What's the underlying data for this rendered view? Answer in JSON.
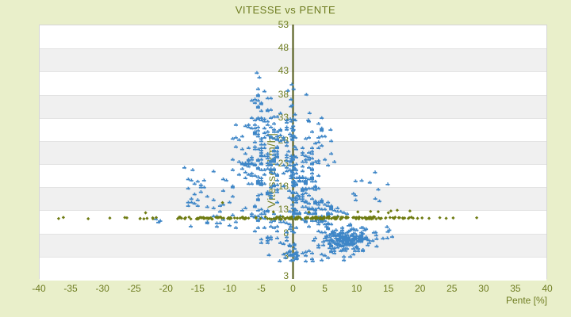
{
  "chart_data": {
    "type": "scatter",
    "title": "VITESSE vs PENTE",
    "xlabel": "Pente [%]",
    "ylabel": "Vitesse [km/h]",
    "xlim": [
      -40,
      40
    ],
    "ylim": [
      3,
      53
    ],
    "x_tick_step": 5,
    "y_tick_step": 5,
    "x_tick_labels": [
      "-40",
      "-35",
      "-30",
      "-25",
      "-20",
      "-15",
      "-10",
      "-5",
      "0",
      "5",
      "10",
      "15",
      "20",
      "25",
      "30",
      "35",
      "40"
    ],
    "y_tick_labels": [
      "53",
      "48",
      "43",
      "38",
      "33",
      "28",
      "23",
      "18",
      "13",
      "8",
      "3",
      "3"
    ],
    "grid": "horizontal-bands",
    "legend": "none",
    "colors": {
      "background": "#e9efca",
      "band_light": "#ffffff",
      "band_dark": "#f0f0f0",
      "band_line": "#e3e3e3",
      "plot_border": "#d5d5d5",
      "axis_line": "#4c5410",
      "text": "#6f7d22",
      "blue_points": "#3e86c7",
      "olive_points": "#6e7b11"
    },
    "series": [
      {
        "name": "vitesse",
        "marker": "plus",
        "color": "#3e86c7",
        "seed": 1337,
        "clusters": [
          {
            "type": "gauss",
            "cx": -4.6,
            "cy": 35.2,
            "sx": 1.15,
            "sy": 2.3,
            "n": 28,
            "qx": 0.5,
            "qy": 0.25
          },
          {
            "type": "gauss",
            "cx": -4.2,
            "cy": 29.8,
            "sx": 2.0,
            "sy": 1.8,
            "n": 58,
            "qx": 0.5,
            "qy": 0.25
          },
          {
            "type": "gauss",
            "cx": -4.4,
            "cy": 22.2,
            "sx": 2.7,
            "sy": 2.9,
            "n": 145,
            "qx": 0.5,
            "qy": 0.25
          },
          {
            "type": "uniform",
            "x0": -16.5,
            "x1": -9,
            "y0": 13.4,
            "y1": 19.6,
            "n": 30,
            "qx": 0.5,
            "qy": 0.25
          },
          {
            "type": "uniform",
            "x0": -14,
            "x1": -8.5,
            "y0": 8.6,
            "y1": 13.4,
            "n": 13,
            "qx": 0.5,
            "qy": 0.25
          },
          {
            "type": "gauss",
            "cx": -4.0,
            "cy": 11.6,
            "sx": 2.2,
            "sy": 1.9,
            "n": 55,
            "qx": 0.5,
            "qy": 0.25
          },
          {
            "type": "uniform",
            "x0": -5.5,
            "x1": -0.5,
            "y0": 5.0,
            "y1": 8.6,
            "n": 16,
            "qx": 0.5,
            "qy": 0.25
          },
          {
            "type": "gauss",
            "cx": 0,
            "cy": 17.5,
            "sx": 0.3,
            "sy": 9.2,
            "n": 88,
            "qy": 0.25,
            "ymin": 2.2,
            "ymax": 40
          },
          {
            "type": "gauss",
            "cx": 2.2,
            "cy": 17.0,
            "sx": 1.3,
            "sy": 4.2,
            "n": 110,
            "qx": 0.5,
            "qy": 0.25,
            "ymin": 5.5
          },
          {
            "type": "gauss",
            "cx": 8.0,
            "cy": 6.4,
            "sx": 1.85,
            "sy": 1.25,
            "n": 210,
            "qx": 0.25,
            "qy": 0.25,
            "ymin": 3.8
          },
          {
            "type": "gauss",
            "cx": 5.0,
            "cy": 12.0,
            "sx": 1.8,
            "sy": 1.6,
            "n": 55,
            "qx": 0.5,
            "qy": 0.25
          },
          {
            "type": "gauss",
            "cx": 3.4,
            "cy": 25.6,
            "sx": 1.7,
            "sy": 3.1,
            "n": 28,
            "qx": 0.5,
            "qy": 0.25
          },
          {
            "type": "uniform",
            "x0": -2,
            "x1": 9.5,
            "y0": 1.8,
            "y1": 4.4,
            "n": 28,
            "qx": 0.5,
            "qy": 0.25
          },
          {
            "type": "uniform",
            "x0": 11.8,
            "x1": 16.6,
            "y0": 4.6,
            "y1": 9.8,
            "n": 12
          },
          {
            "type": "uniform",
            "x0": 9,
            "x1": 14.3,
            "y0": 14.6,
            "y1": 19.4,
            "n": 9
          }
        ],
        "points": [
          [
            -21.6,
            10.9
          ],
          [
            -21.2,
            10.2
          ],
          [
            -20.9,
            10.5
          ],
          [
            -16.1,
            9.3
          ],
          [
            14.9,
            18.4
          ],
          [
            12.9,
            21.0
          ],
          [
            -12.5,
            21.2
          ],
          [
            -15.8,
            21.5
          ],
          [
            -17.1,
            22.0
          ],
          [
            2.1,
            37.8
          ],
          [
            2.6,
            33.8
          ],
          [
            2.4,
            32.3
          ],
          [
            -5.7,
            42.5
          ],
          [
            -5.3,
            41.5
          ],
          [
            5.9,
            30.2
          ],
          [
            -0.3,
            1.9
          ],
          [
            3.1,
            1.8
          ],
          [
            -3.8,
            3.1
          ],
          [
            -2.1,
            1.8
          ],
          [
            -1.2,
            2.5
          ]
        ]
      },
      {
        "name": "bande-olive",
        "marker": "diamond",
        "color": "#6e7b11",
        "seed": 77,
        "clusters": [
          {
            "type": "uniform",
            "x0": -37.6,
            "x1": -25,
            "y0": 11.0,
            "y1": 11.35,
            "n": 6
          },
          {
            "type": "uniform",
            "x0": -25,
            "x1": -18,
            "y0": 11.0,
            "y1": 11.4,
            "n": 8
          },
          {
            "type": "uniform",
            "x0": -18,
            "x1": -5,
            "y0": 10.95,
            "y1": 11.4,
            "n": 65
          },
          {
            "type": "uniform",
            "x0": -5,
            "x1": 13.2,
            "y0": 10.9,
            "y1": 11.45,
            "n": 120
          },
          {
            "type": "uniform",
            "x0": 13.2,
            "x1": 19.2,
            "y0": 11.0,
            "y1": 11.35,
            "n": 18
          }
        ],
        "points": [
          [
            -23.2,
            12.3
          ],
          [
            -11.1,
            14.5
          ],
          [
            15.4,
            12.7
          ],
          [
            16.4,
            12.85
          ],
          [
            18.4,
            12.7
          ],
          [
            15.0,
            12.3
          ],
          [
            10.2,
            12.5
          ],
          [
            2.5,
            12.45
          ],
          [
            -3.1,
            12.5
          ],
          [
            20.3,
            11.2
          ],
          [
            21.4,
            11.1
          ],
          [
            23.1,
            11.25
          ],
          [
            24.1,
            11.1
          ],
          [
            25.2,
            11.2
          ],
          [
            28.9,
            11.22
          ],
          [
            19.6,
            11.1
          ],
          [
            12.2,
            12.6
          ],
          [
            13.4,
            12.55
          ]
        ]
      }
    ]
  }
}
